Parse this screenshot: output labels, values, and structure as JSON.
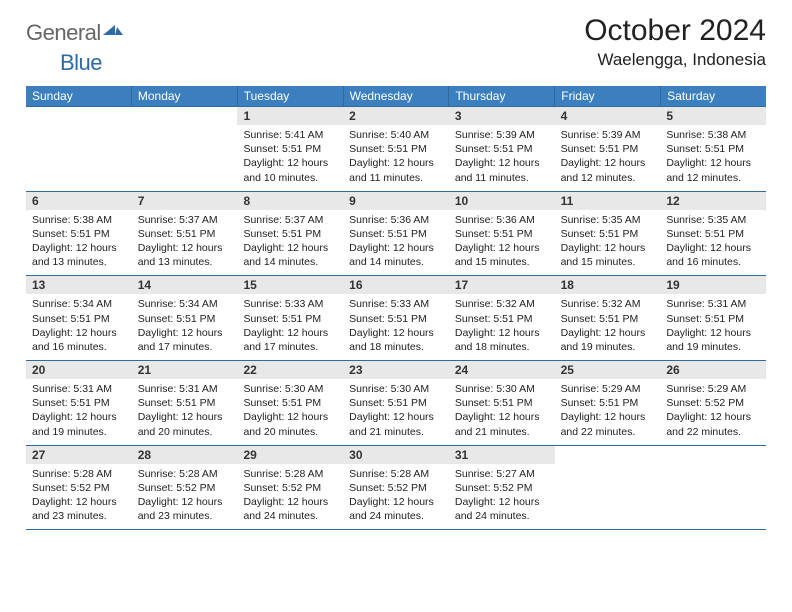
{
  "logo": {
    "part1": "General",
    "part2": "Blue"
  },
  "title": "October 2024",
  "location": "Waelengga, Indonesia",
  "colors": {
    "header_bg": "#3b7fbf",
    "header_text": "#ffffff",
    "daynum_bg": "#e8e8e8",
    "border": "#2f6aa0",
    "logo_color": "#2d6aa6"
  },
  "daysOfWeek": [
    "Sunday",
    "Monday",
    "Tuesday",
    "Wednesday",
    "Thursday",
    "Friday",
    "Saturday"
  ],
  "weeks": [
    [
      {
        "num": "",
        "sunrise": "",
        "sunset": "",
        "daylight1": "",
        "daylight2": "",
        "empty": true
      },
      {
        "num": "",
        "sunrise": "",
        "sunset": "",
        "daylight1": "",
        "daylight2": "",
        "empty": true
      },
      {
        "num": "1",
        "sunrise": "Sunrise: 5:41 AM",
        "sunset": "Sunset: 5:51 PM",
        "daylight1": "Daylight: 12 hours",
        "daylight2": "and 10 minutes."
      },
      {
        "num": "2",
        "sunrise": "Sunrise: 5:40 AM",
        "sunset": "Sunset: 5:51 PM",
        "daylight1": "Daylight: 12 hours",
        "daylight2": "and 11 minutes."
      },
      {
        "num": "3",
        "sunrise": "Sunrise: 5:39 AM",
        "sunset": "Sunset: 5:51 PM",
        "daylight1": "Daylight: 12 hours",
        "daylight2": "and 11 minutes."
      },
      {
        "num": "4",
        "sunrise": "Sunrise: 5:39 AM",
        "sunset": "Sunset: 5:51 PM",
        "daylight1": "Daylight: 12 hours",
        "daylight2": "and 12 minutes."
      },
      {
        "num": "5",
        "sunrise": "Sunrise: 5:38 AM",
        "sunset": "Sunset: 5:51 PM",
        "daylight1": "Daylight: 12 hours",
        "daylight2": "and 12 minutes."
      }
    ],
    [
      {
        "num": "6",
        "sunrise": "Sunrise: 5:38 AM",
        "sunset": "Sunset: 5:51 PM",
        "daylight1": "Daylight: 12 hours",
        "daylight2": "and 13 minutes."
      },
      {
        "num": "7",
        "sunrise": "Sunrise: 5:37 AM",
        "sunset": "Sunset: 5:51 PM",
        "daylight1": "Daylight: 12 hours",
        "daylight2": "and 13 minutes."
      },
      {
        "num": "8",
        "sunrise": "Sunrise: 5:37 AM",
        "sunset": "Sunset: 5:51 PM",
        "daylight1": "Daylight: 12 hours",
        "daylight2": "and 14 minutes."
      },
      {
        "num": "9",
        "sunrise": "Sunrise: 5:36 AM",
        "sunset": "Sunset: 5:51 PM",
        "daylight1": "Daylight: 12 hours",
        "daylight2": "and 14 minutes."
      },
      {
        "num": "10",
        "sunrise": "Sunrise: 5:36 AM",
        "sunset": "Sunset: 5:51 PM",
        "daylight1": "Daylight: 12 hours",
        "daylight2": "and 15 minutes."
      },
      {
        "num": "11",
        "sunrise": "Sunrise: 5:35 AM",
        "sunset": "Sunset: 5:51 PM",
        "daylight1": "Daylight: 12 hours",
        "daylight2": "and 15 minutes."
      },
      {
        "num": "12",
        "sunrise": "Sunrise: 5:35 AM",
        "sunset": "Sunset: 5:51 PM",
        "daylight1": "Daylight: 12 hours",
        "daylight2": "and 16 minutes."
      }
    ],
    [
      {
        "num": "13",
        "sunrise": "Sunrise: 5:34 AM",
        "sunset": "Sunset: 5:51 PM",
        "daylight1": "Daylight: 12 hours",
        "daylight2": "and 16 minutes."
      },
      {
        "num": "14",
        "sunrise": "Sunrise: 5:34 AM",
        "sunset": "Sunset: 5:51 PM",
        "daylight1": "Daylight: 12 hours",
        "daylight2": "and 17 minutes."
      },
      {
        "num": "15",
        "sunrise": "Sunrise: 5:33 AM",
        "sunset": "Sunset: 5:51 PM",
        "daylight1": "Daylight: 12 hours",
        "daylight2": "and 17 minutes."
      },
      {
        "num": "16",
        "sunrise": "Sunrise: 5:33 AM",
        "sunset": "Sunset: 5:51 PM",
        "daylight1": "Daylight: 12 hours",
        "daylight2": "and 18 minutes."
      },
      {
        "num": "17",
        "sunrise": "Sunrise: 5:32 AM",
        "sunset": "Sunset: 5:51 PM",
        "daylight1": "Daylight: 12 hours",
        "daylight2": "and 18 minutes."
      },
      {
        "num": "18",
        "sunrise": "Sunrise: 5:32 AM",
        "sunset": "Sunset: 5:51 PM",
        "daylight1": "Daylight: 12 hours",
        "daylight2": "and 19 minutes."
      },
      {
        "num": "19",
        "sunrise": "Sunrise: 5:31 AM",
        "sunset": "Sunset: 5:51 PM",
        "daylight1": "Daylight: 12 hours",
        "daylight2": "and 19 minutes."
      }
    ],
    [
      {
        "num": "20",
        "sunrise": "Sunrise: 5:31 AM",
        "sunset": "Sunset: 5:51 PM",
        "daylight1": "Daylight: 12 hours",
        "daylight2": "and 19 minutes."
      },
      {
        "num": "21",
        "sunrise": "Sunrise: 5:31 AM",
        "sunset": "Sunset: 5:51 PM",
        "daylight1": "Daylight: 12 hours",
        "daylight2": "and 20 minutes."
      },
      {
        "num": "22",
        "sunrise": "Sunrise: 5:30 AM",
        "sunset": "Sunset: 5:51 PM",
        "daylight1": "Daylight: 12 hours",
        "daylight2": "and 20 minutes."
      },
      {
        "num": "23",
        "sunrise": "Sunrise: 5:30 AM",
        "sunset": "Sunset: 5:51 PM",
        "daylight1": "Daylight: 12 hours",
        "daylight2": "and 21 minutes."
      },
      {
        "num": "24",
        "sunrise": "Sunrise: 5:30 AM",
        "sunset": "Sunset: 5:51 PM",
        "daylight1": "Daylight: 12 hours",
        "daylight2": "and 21 minutes."
      },
      {
        "num": "25",
        "sunrise": "Sunrise: 5:29 AM",
        "sunset": "Sunset: 5:51 PM",
        "daylight1": "Daylight: 12 hours",
        "daylight2": "and 22 minutes."
      },
      {
        "num": "26",
        "sunrise": "Sunrise: 5:29 AM",
        "sunset": "Sunset: 5:52 PM",
        "daylight1": "Daylight: 12 hours",
        "daylight2": "and 22 minutes."
      }
    ],
    [
      {
        "num": "27",
        "sunrise": "Sunrise: 5:28 AM",
        "sunset": "Sunset: 5:52 PM",
        "daylight1": "Daylight: 12 hours",
        "daylight2": "and 23 minutes."
      },
      {
        "num": "28",
        "sunrise": "Sunrise: 5:28 AM",
        "sunset": "Sunset: 5:52 PM",
        "daylight1": "Daylight: 12 hours",
        "daylight2": "and 23 minutes."
      },
      {
        "num": "29",
        "sunrise": "Sunrise: 5:28 AM",
        "sunset": "Sunset: 5:52 PM",
        "daylight1": "Daylight: 12 hours",
        "daylight2": "and 24 minutes."
      },
      {
        "num": "30",
        "sunrise": "Sunrise: 5:28 AM",
        "sunset": "Sunset: 5:52 PM",
        "daylight1": "Daylight: 12 hours",
        "daylight2": "and 24 minutes."
      },
      {
        "num": "31",
        "sunrise": "Sunrise: 5:27 AM",
        "sunset": "Sunset: 5:52 PM",
        "daylight1": "Daylight: 12 hours",
        "daylight2": "and 24 minutes."
      },
      {
        "num": "",
        "sunrise": "",
        "sunset": "",
        "daylight1": "",
        "daylight2": "",
        "empty": true
      },
      {
        "num": "",
        "sunrise": "",
        "sunset": "",
        "daylight1": "",
        "daylight2": "",
        "empty": true
      }
    ]
  ]
}
